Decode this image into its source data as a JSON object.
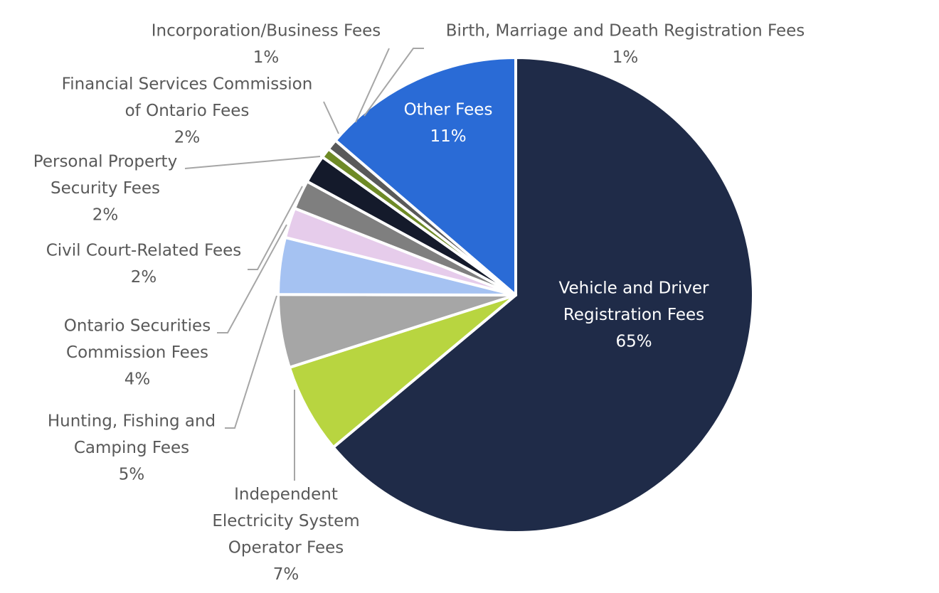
{
  "chart_data": {
    "type": "pie",
    "title": "",
    "slices": [
      {
        "label_lines": [
          "Vehicle and Driver",
          "Registration Fees"
        ],
        "value": 65,
        "pct_label": "65%",
        "color": "#1f2b48"
      },
      {
        "label_lines": [
          "Independent",
          "Electricity System",
          "Operator Fees"
        ],
        "value": 7,
        "pct_label": "7%",
        "color": "#b8d540"
      },
      {
        "label_lines": [
          "Hunting, Fishing and",
          "Camping Fees"
        ],
        "value": 5,
        "pct_label": "5%",
        "color": "#a6a6a6"
      },
      {
        "label_lines": [
          "Ontario Securities",
          "Commission Fees"
        ],
        "value": 4,
        "pct_label": "4%",
        "color": "#a5c2f2"
      },
      {
        "label_lines": [
          "Civil Court-Related Fees"
        ],
        "value": 2,
        "pct_label": "2%",
        "color": "#e6cceb"
      },
      {
        "label_lines": [
          "Personal Property",
          "Security Fees"
        ],
        "value": 2,
        "pct_label": "2%",
        "color": "#7f7f7f"
      },
      {
        "label_lines": [
          "Financial Services Commission",
          "of Ontario Fees"
        ],
        "value": 2,
        "pct_label": "2%",
        "color": "#141a2b"
      },
      {
        "label_lines": [
          "Incorporation/Business Fees"
        ],
        "value": 1,
        "pct_label": "1%",
        "color": "#6e8a26"
      },
      {
        "label_lines": [
          "Birth, Marriage and Death Registration Fees"
        ],
        "value": 1,
        "pct_label": "1%",
        "color": "#595959"
      },
      {
        "label_lines": [
          "Other Fees"
        ],
        "value": 11,
        "pct_label": "11%",
        "color": "#2a6bd6"
      }
    ]
  }
}
